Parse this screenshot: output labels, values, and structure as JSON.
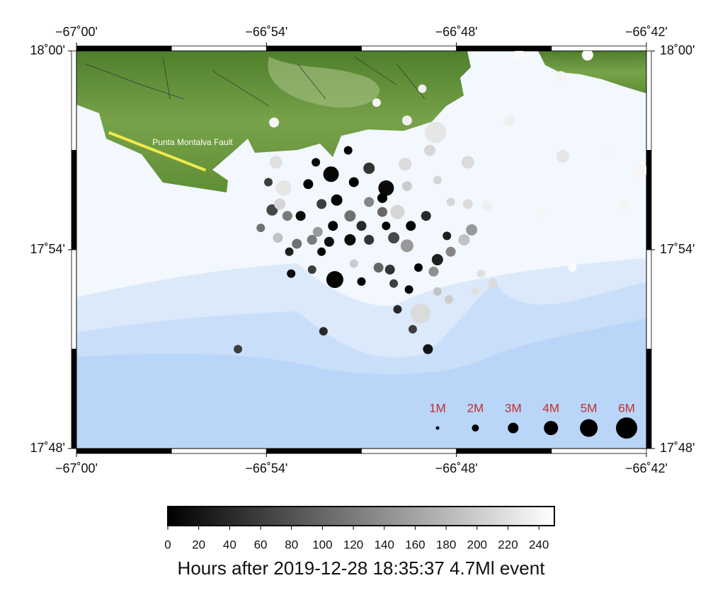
{
  "map": {
    "xlim": [
      -67.0,
      -66.7
    ],
    "ylim": [
      17.8,
      18.0
    ],
    "xticks": [
      {
        "value": -67.0,
        "label": "−67˚00'"
      },
      {
        "value": -66.9,
        "label": "−66˚54'"
      },
      {
        "value": -66.8,
        "label": "−66˚48'"
      },
      {
        "value": -66.7,
        "label": "−66˚42'"
      }
    ],
    "yticks": [
      {
        "value": 18.0,
        "label": "18˚00'"
      },
      {
        "value": 17.9,
        "label": "17˚54'"
      },
      {
        "value": 17.8,
        "label": "17˚48'"
      }
    ],
    "fault": {
      "name": "Punta Montalva Fault",
      "color": "#f3e94b",
      "lon": [
        -66.983,
        -66.932
      ],
      "lat": [
        17.959,
        17.94
      ]
    },
    "colormap": [
      "#000000",
      "#ffffff"
    ],
    "colorbar": {
      "title": "Hours after 2019-12-28 18:35:37 4.7Ml event",
      "lim": [
        0,
        250
      ],
      "ticks": [
        0,
        20,
        40,
        60,
        80,
        100,
        120,
        140,
        160,
        180,
        200,
        220,
        240
      ]
    },
    "size_legend": {
      "color": "#c0302a",
      "keys": [
        {
          "value": 1,
          "label": "1M"
        },
        {
          "value": 2,
          "label": "2M"
        },
        {
          "value": 3,
          "label": "3M"
        },
        {
          "value": 4,
          "label": "4M"
        },
        {
          "value": 5,
          "label": "5M"
        },
        {
          "value": 6,
          "label": "6M"
        }
      ]
    },
    "events": {
      "lon": [
        -66.864,
        -66.866,
        -66.837,
        -66.811,
        -66.819,
        -66.891,
        -66.895,
        -66.915,
        -66.87,
        -66.815,
        -66.896,
        -66.826,
        -66.842,
        -66.818,
        -66.767,
        -66.731,
        -66.745,
        -66.772,
        -66.744,
        -66.719,
        -66.703,
        -66.712,
        -66.756,
        -66.739,
        -66.784,
        -66.794,
        -66.794,
        -66.814,
        -66.827,
        -66.857,
        -66.874,
        -66.854,
        -66.846,
        -66.863,
        -66.878,
        -66.899,
        -66.897,
        -66.903,
        -66.889,
        -66.882,
        -66.873,
        -66.856,
        -66.846,
        -66.839,
        -66.831,
        -66.824,
        -66.816,
        -66.805,
        -66.826,
        -66.833,
        -66.846,
        -66.856,
        -66.867,
        -66.876,
        -66.884,
        -66.894,
        -66.888,
        -66.871,
        -66.841,
        -66.835,
        -66.82,
        -66.81,
        -66.803,
        -66.796,
        -66.792,
        -66.812,
        -66.876,
        -66.887,
        -66.85,
        -66.833,
        -66.825,
        -66.81,
        -66.804,
        -66.79,
        -66.781,
        -66.787,
        -66.831,
        -66.823,
        -66.854,
        -66.893,
        -66.826,
        -66.81,
        -66.803,
        -66.871,
        -66.839,
        -66.85,
        -66.865,
        -66.837
      ],
      "lat": [
        17.885,
        17.938,
        17.931,
        17.959,
        17.868,
        17.931,
        17.944,
        17.85,
        17.859,
        17.85,
        17.964,
        17.965,
        17.974,
        17.981,
        17.998,
        17.998,
        17.987,
        17.965,
        17.947,
        17.949,
        17.94,
        17.922,
        17.918,
        17.891,
        17.922,
        17.923,
        17.944,
        17.95,
        17.943,
        17.95,
        17.944,
        17.934,
        17.941,
        17.925,
        17.933,
        17.934,
        17.92,
        17.911,
        17.917,
        17.917,
        17.909,
        17.917,
        17.924,
        17.919,
        17.919,
        17.912,
        17.917,
        17.907,
        17.902,
        17.906,
        17.905,
        17.905,
        17.904,
        17.905,
        17.903,
        17.906,
        17.899,
        17.899,
        17.891,
        17.89,
        17.891,
        17.895,
        17.899,
        17.905,
        17.91,
        17.889,
        17.89,
        17.888,
        17.884,
        17.883,
        17.88,
        17.879,
        17.875,
        17.879,
        17.883,
        17.888,
        17.87,
        17.86,
        17.893,
        17.923,
        17.932,
        17.935,
        17.924,
        17.923,
        17.926,
        17.912,
        17.912,
        17.912
      ],
      "hours": [
        5,
        5,
        10,
        225,
        215,
        225,
        220,
        60,
        40,
        20,
        240,
        235,
        240,
        235,
        245,
        245,
        240,
        235,
        225,
        240,
        240,
        240,
        240,
        245,
        235,
        215,
        215,
        210,
        215,
        5,
        10,
        0,
        50,
        0,
        0,
        60,
        70,
        110,
        120,
        10,
        150,
        110,
        130,
        100,
        210,
        5,
        40,
        30,
        150,
        70,
        50,
        10,
        15,
        120,
        110,
        190,
        30,
        5,
        100,
        50,
        0,
        30,
        130,
        190,
        150,
        140,
        60,
        10,
        5,
        60,
        5,
        190,
        200,
        220,
        215,
        220,
        40,
        60,
        200,
        210,
        200,
        210,
        210,
        60,
        0,
        40,
        5,
        0
      ],
      "mag": [
        4.8,
        4.4,
        4.4,
        6,
        5.6,
        4.4,
        3.6,
        2.4,
        2.4,
        2.8,
        2.8,
        2.8,
        2.4,
        2.4,
        3.2,
        3.2,
        3.2,
        3.2,
        3.6,
        2.4,
        4,
        3.2,
        2.4,
        2.4,
        2.8,
        2.8,
        3.6,
        3.2,
        3.6,
        2.4,
        2.4,
        2.8,
        3.2,
        3.2,
        2.8,
        2.4,
        3.2,
        2.4,
        2.8,
        2.8,
        2.8,
        3.2,
        2.8,
        2.8,
        4,
        2.8,
        2.8,
        2.4,
        3.6,
        3.2,
        2.8,
        3.2,
        2.8,
        2.8,
        2.8,
        2.8,
        2.4,
        2.4,
        2.8,
        2.8,
        2.4,
        3.2,
        2.8,
        3.2,
        3.2,
        2.8,
        2.4,
        2.4,
        2.4,
        2.4,
        2.4,
        2.4,
        2.4,
        2.4,
        2.8,
        2.4,
        2.4,
        2.4,
        2.4,
        3.2,
        2.8,
        2.4,
        2.4,
        2.8,
        2.8,
        2.8,
        2.8,
        2.4
      ]
    }
  }
}
